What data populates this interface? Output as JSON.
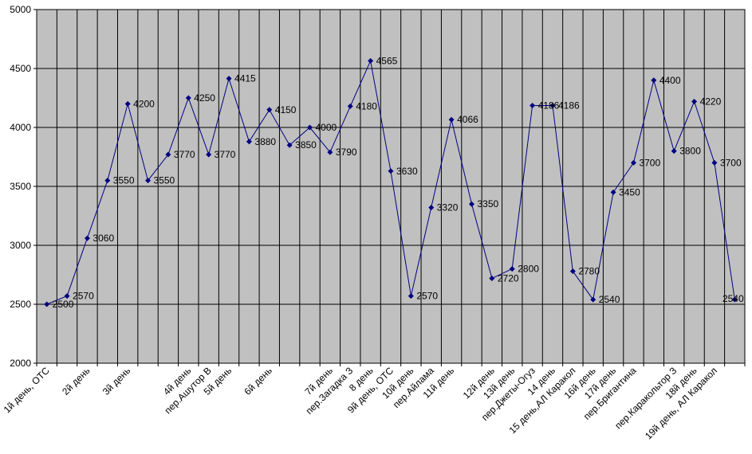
{
  "chart_data": {
    "type": "line",
    "title": "",
    "xlabel": "",
    "ylabel": "",
    "ylim": [
      2000,
      5000
    ],
    "yticks": [
      2000,
      2500,
      3000,
      3500,
      4000,
      4500,
      5000
    ],
    "grid": true,
    "legend": "none",
    "colors": {
      "plot_bg": "#c0c0c0",
      "line": "#000080",
      "grid": "#000000"
    },
    "points": [
      {
        "label": "1й день, ОТС",
        "value": 2500
      },
      {
        "label": "",
        "value": 2570
      },
      {
        "label": "2й день",
        "value": 3060
      },
      {
        "label": "",
        "value": 3550
      },
      {
        "label": "3й день",
        "value": 4200
      },
      {
        "label": "",
        "value": 3550
      },
      {
        "label": "",
        "value": 3770
      },
      {
        "label": "4й день",
        "value": 4250
      },
      {
        "label": "пер.Ашутор В",
        "value": 3770
      },
      {
        "label": "5й день",
        "value": 4415
      },
      {
        "label": "",
        "value": 3880
      },
      {
        "label": "6й день",
        "value": 4150
      },
      {
        "label": "",
        "value": 3850
      },
      {
        "label": "",
        "value": 4000
      },
      {
        "label": "7й день",
        "value": 3790
      },
      {
        "label": "пер.Загадка З",
        "value": 4180
      },
      {
        "label": "8 день",
        "value": 4565
      },
      {
        "label": "9й день, ОТС",
        "value": 3630
      },
      {
        "label": "10й день",
        "value": 2570
      },
      {
        "label": "пер.Айлама",
        "value": 3320
      },
      {
        "label": "11й день",
        "value": 4066
      },
      {
        "label": "",
        "value": 3350
      },
      {
        "label": "12й день",
        "value": 2720
      },
      {
        "label": "13й день",
        "value": 2800
      },
      {
        "label": "пер.Джеты-Огуз",
        "value": 4186
      },
      {
        "label": "14 день",
        "value": 4186
      },
      {
        "label": "15 день,АЛ Каракол",
        "value": 2780
      },
      {
        "label": "16й день",
        "value": 2540
      },
      {
        "label": "17й день",
        "value": 3450
      },
      {
        "label": "пер.Бригантина",
        "value": 3700
      },
      {
        "label": "",
        "value": 4400
      },
      {
        "label": "пер.Каракольтор З",
        "value": 3800
      },
      {
        "label": "18й день",
        "value": 4220
      },
      {
        "label": "19й день, АЛ Каракол",
        "value": 3700
      },
      {
        "label": "",
        "value": 2540
      }
    ]
  }
}
